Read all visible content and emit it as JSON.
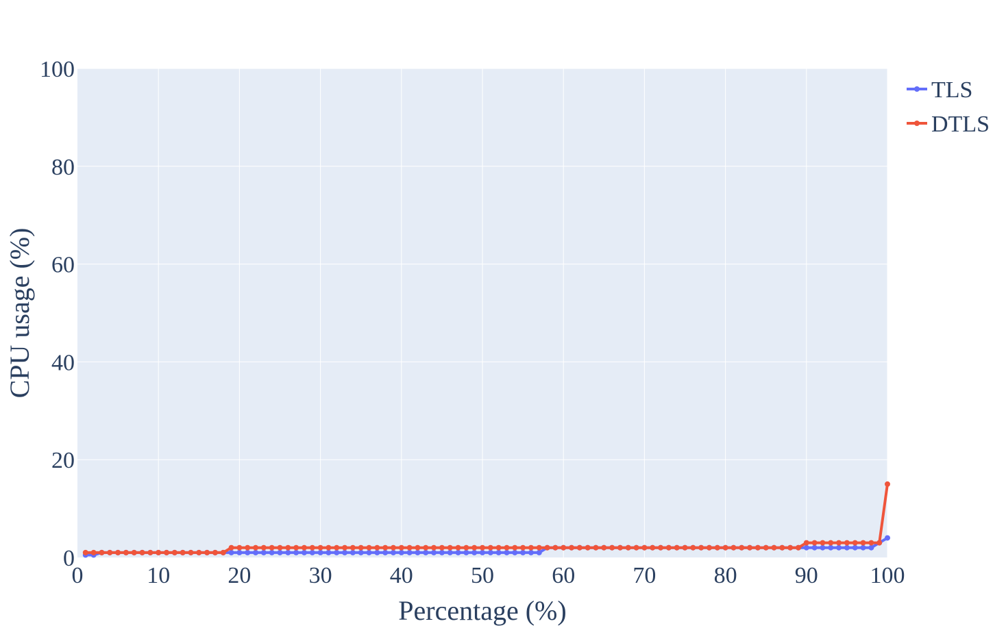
{
  "chart_data": {
    "type": "line",
    "title": "",
    "xlabel": "Percentage (%)",
    "ylabel": "CPU usage (%)",
    "xlim": [
      0,
      100
    ],
    "ylim": [
      0,
      100
    ],
    "x_ticks": [
      "0",
      "10",
      "20",
      "30",
      "40",
      "50",
      "60",
      "70",
      "80",
      "90",
      "100"
    ],
    "y_ticks": [
      "0",
      "20",
      "40",
      "60",
      "80",
      "100"
    ],
    "grid": true,
    "legend_position": "top-right",
    "series": [
      {
        "name": "TLS",
        "color": "#636efa",
        "x": [
          1,
          2,
          3,
          4,
          5,
          6,
          7,
          8,
          9,
          10,
          11,
          12,
          13,
          14,
          15,
          16,
          17,
          18,
          19,
          20,
          21,
          22,
          23,
          24,
          25,
          26,
          27,
          28,
          29,
          30,
          31,
          32,
          33,
          34,
          35,
          36,
          37,
          38,
          39,
          40,
          41,
          42,
          43,
          44,
          45,
          46,
          47,
          48,
          49,
          50,
          51,
          52,
          53,
          54,
          55,
          56,
          57,
          58,
          59,
          60,
          61,
          62,
          63,
          64,
          65,
          66,
          67,
          68,
          69,
          70,
          71,
          72,
          73,
          74,
          75,
          76,
          77,
          78,
          79,
          80,
          81,
          82,
          83,
          84,
          85,
          86,
          87,
          88,
          89,
          90,
          91,
          92,
          93,
          94,
          95,
          96,
          97,
          98,
          99,
          100
        ],
        "values": [
          0.5,
          0.5,
          1,
          1,
          1,
          1,
          1,
          1,
          1,
          1,
          1,
          1,
          1,
          1,
          1,
          1,
          1,
          1,
          1,
          1,
          1,
          1,
          1,
          1,
          1,
          1,
          1,
          1,
          1,
          1,
          1,
          1,
          1,
          1,
          1,
          1,
          1,
          1,
          1,
          1,
          1,
          1,
          1,
          1,
          1,
          1,
          1,
          1,
          1,
          1,
          1,
          1,
          1,
          1,
          1,
          1,
          1,
          2,
          2,
          2,
          2,
          2,
          2,
          2,
          2,
          2,
          2,
          2,
          2,
          2,
          2,
          2,
          2,
          2,
          2,
          2,
          2,
          2,
          2,
          2,
          2,
          2,
          2,
          2,
          2,
          2,
          2,
          2,
          2,
          2,
          2,
          2,
          2,
          2,
          2,
          2,
          2,
          2,
          3,
          4
        ]
      },
      {
        "name": "DTLS",
        "color": "#ef553b",
        "x": [
          1,
          2,
          3,
          4,
          5,
          6,
          7,
          8,
          9,
          10,
          11,
          12,
          13,
          14,
          15,
          16,
          17,
          18,
          19,
          20,
          21,
          22,
          23,
          24,
          25,
          26,
          27,
          28,
          29,
          30,
          31,
          32,
          33,
          34,
          35,
          36,
          37,
          38,
          39,
          40,
          41,
          42,
          43,
          44,
          45,
          46,
          47,
          48,
          49,
          50,
          51,
          52,
          53,
          54,
          55,
          56,
          57,
          58,
          59,
          60,
          61,
          62,
          63,
          64,
          65,
          66,
          67,
          68,
          69,
          70,
          71,
          72,
          73,
          74,
          75,
          76,
          77,
          78,
          79,
          80,
          81,
          82,
          83,
          84,
          85,
          86,
          87,
          88,
          89,
          90,
          91,
          92,
          93,
          94,
          95,
          96,
          97,
          98,
          99,
          100
        ],
        "values": [
          1,
          1,
          1,
          1,
          1,
          1,
          1,
          1,
          1,
          1,
          1,
          1,
          1,
          1,
          1,
          1,
          1,
          1,
          2,
          2,
          2,
          2,
          2,
          2,
          2,
          2,
          2,
          2,
          2,
          2,
          2,
          2,
          2,
          2,
          2,
          2,
          2,
          2,
          2,
          2,
          2,
          2,
          2,
          2,
          2,
          2,
          2,
          2,
          2,
          2,
          2,
          2,
          2,
          2,
          2,
          2,
          2,
          2,
          2,
          2,
          2,
          2,
          2,
          2,
          2,
          2,
          2,
          2,
          2,
          2,
          2,
          2,
          2,
          2,
          2,
          2,
          2,
          2,
          2,
          2,
          2,
          2,
          2,
          2,
          2,
          2,
          2,
          2,
          2,
          3,
          3,
          3,
          3,
          3,
          3,
          3,
          3,
          3,
          3,
          15
        ]
      }
    ]
  }
}
